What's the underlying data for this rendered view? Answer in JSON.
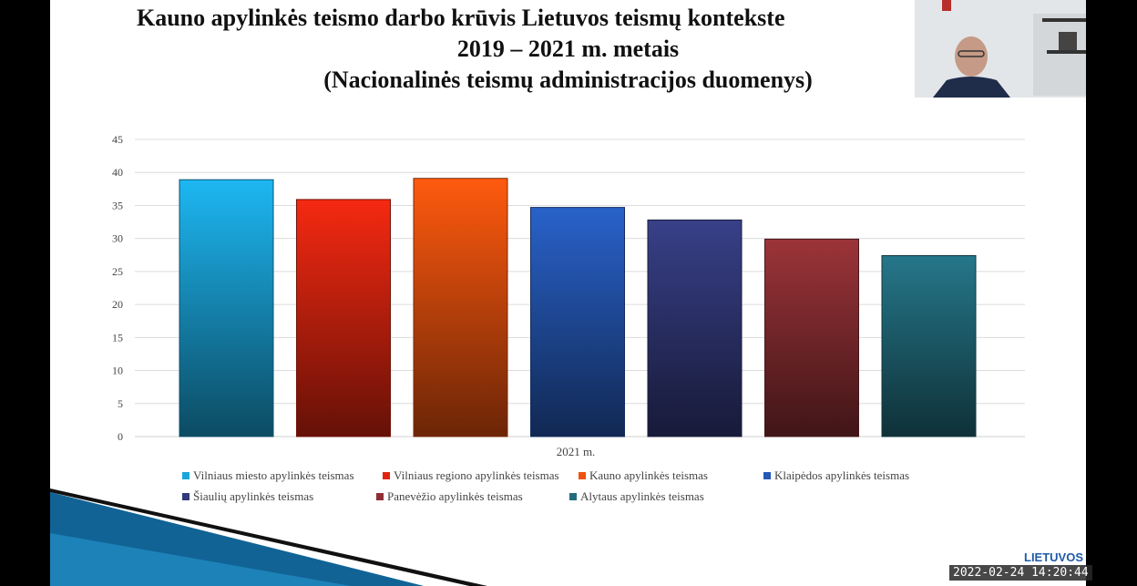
{
  "slide": {
    "title_line1": "Kauno apylinkės teismo darbo krūvis Lietuvos teismų kontekste",
    "title_line2": "2019 – 2021 m.  metais",
    "title_line3": "(Nacionalinės teismų administracijos duomenys)"
  },
  "chart_data": {
    "type": "bar",
    "xlabel": "2021 m.",
    "ylim": [
      0,
      45
    ],
    "yticks": [
      0,
      5,
      10,
      15,
      20,
      25,
      30,
      35,
      40,
      45
    ],
    "grid": true,
    "legend_position": "bottom",
    "series": [
      {
        "name": "Vilniaus miesto apylinkės teismas",
        "values": [
          38.9
        ],
        "color": "#1aa6dc"
      },
      {
        "name": "Vilniaus regiono apylinkės teismas",
        "values": [
          35.9
        ],
        "color": "#e0250f"
      },
      {
        "name": "Kauno apylinkės teismas",
        "values": [
          39.1
        ],
        "color": "#f1520d"
      },
      {
        "name": "Klaipėdos apylinkės teismas",
        "values": [
          34.7
        ],
        "color": "#2559b8"
      },
      {
        "name": "Šiaulių apylinkės teismas",
        "values": [
          32.8
        ],
        "color": "#333a7c"
      },
      {
        "name": "Panevėžio apylinkės teismas",
        "values": [
          29.9
        ],
        "color": "#8e2f34"
      },
      {
        "name": "Alytaus apylinkės teismas",
        "values": [
          27.4
        ],
        "color": "#226c7d"
      }
    ]
  },
  "overlay": {
    "timestamp": "2022-02-24 14:20:44",
    "logo_text": "LIETUVOS"
  }
}
